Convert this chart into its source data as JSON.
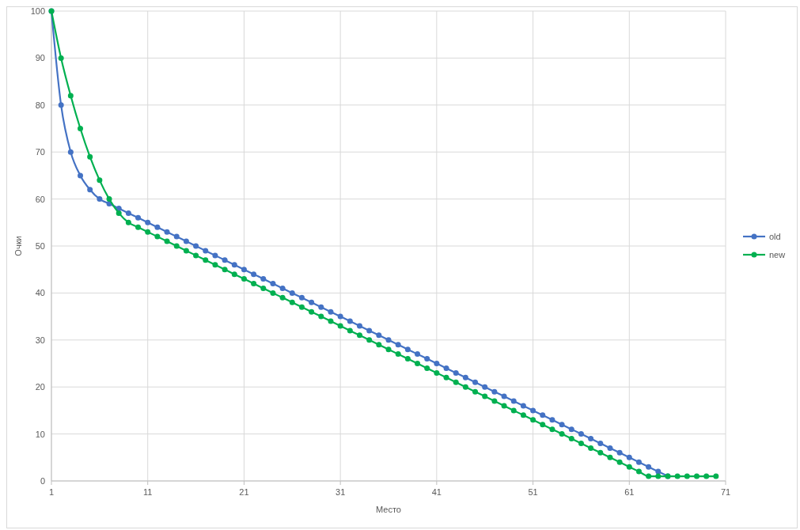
{
  "chart_data": {
    "type": "line",
    "xlabel": "Место",
    "ylabel": "Очки",
    "x": [
      1,
      2,
      3,
      4,
      5,
      6,
      7,
      8,
      9,
      10,
      11,
      12,
      13,
      14,
      15,
      16,
      17,
      18,
      19,
      20,
      21,
      22,
      23,
      24,
      25,
      26,
      27,
      28,
      29,
      30,
      31,
      32,
      33,
      34,
      35,
      36,
      37,
      38,
      39,
      40,
      41,
      42,
      43,
      44,
      45,
      46,
      47,
      48,
      49,
      50,
      51,
      52,
      53,
      54,
      55,
      56,
      57,
      58,
      59,
      60,
      61,
      62,
      63,
      64,
      65,
      66,
      67,
      68,
      69,
      70
    ],
    "series": [
      {
        "name": "old",
        "color": "#4472c4",
        "values": [
          100,
          80,
          70,
          65,
          62,
          60,
          59,
          58,
          57,
          56,
          55,
          54,
          53,
          52,
          51,
          50,
          49,
          48,
          47,
          46,
          45,
          44,
          43,
          42,
          41,
          40,
          39,
          38,
          37,
          36,
          35,
          34,
          33,
          32,
          31,
          30,
          29,
          28,
          27,
          26,
          25,
          24,
          23,
          22,
          21,
          20,
          19,
          18,
          17,
          16,
          15,
          14,
          13,
          12,
          11,
          10,
          9,
          8,
          7,
          6,
          5,
          4,
          3,
          2,
          1,
          null,
          null,
          null,
          null,
          null
        ]
      },
      {
        "name": "new",
        "color": "#00b050",
        "values": [
          100,
          90,
          82,
          75,
          69,
          64,
          60,
          57,
          55,
          54,
          53,
          52,
          51,
          50,
          49,
          48,
          47,
          46,
          45,
          44,
          43,
          42,
          41,
          40,
          39,
          38,
          37,
          36,
          35,
          34,
          33,
          32,
          31,
          30,
          29,
          28,
          27,
          26,
          25,
          24,
          23,
          22,
          21,
          20,
          19,
          18,
          17,
          16,
          15,
          14,
          13,
          12,
          11,
          10,
          9,
          8,
          7,
          6,
          5,
          4,
          3,
          2,
          1,
          1,
          1,
          1,
          1,
          1,
          1,
          1
        ]
      }
    ],
    "xlim": [
      1,
      71
    ],
    "xticks": [
      1,
      11,
      21,
      31,
      41,
      51,
      61,
      71
    ],
    "ylim": [
      0,
      100
    ],
    "yticks": [
      0,
      10,
      20,
      30,
      40,
      50,
      60,
      70,
      80,
      90,
      100
    ],
    "grid": true,
    "legend": "right",
    "marker": "circle",
    "line_style": "solid"
  }
}
